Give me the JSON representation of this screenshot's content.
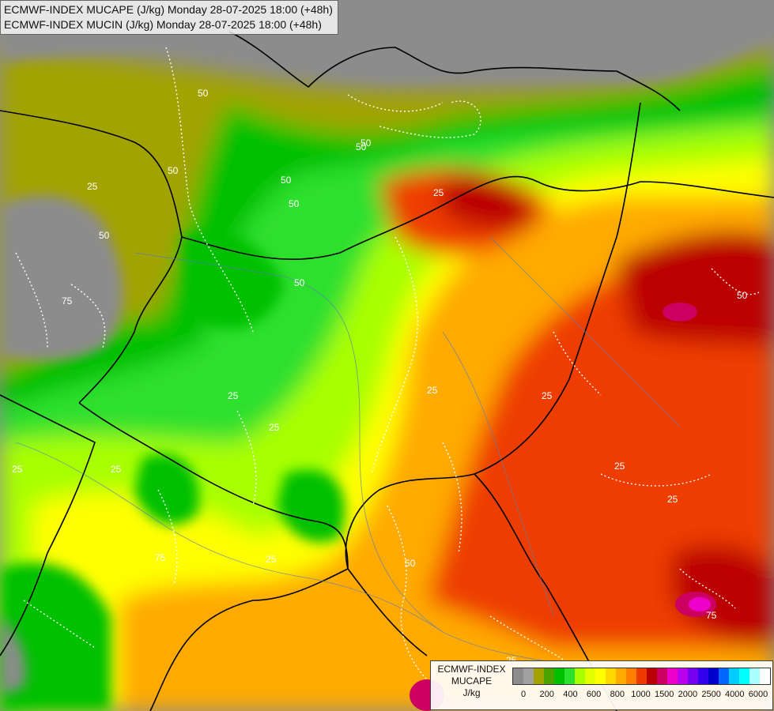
{
  "title": {
    "line1": "ECMWF-INDEX MUCAPE (J/kg) Monday 28-07-2025 18:00 (+48h)",
    "line2": "ECMWF-INDEX MUCIN (J/kg) Monday 28-07-2025 18:00 (+48h)"
  },
  "legend": {
    "label_line1": "ECMWF-INDEX",
    "label_line2": "MUCAPE",
    "label_line3": "J/kg",
    "colors": [
      "#8c8c8c",
      "#a0a0a0",
      "#a3a300",
      "#4ba300",
      "#00c000",
      "#2ee02e",
      "#a8ff00",
      "#e4ff00",
      "#ffff00",
      "#ffd700",
      "#ffaa00",
      "#ff7f00",
      "#ee3c00",
      "#bb0000",
      "#cc0060",
      "#ee00cc",
      "#bb00ee",
      "#7700ee",
      "#3300ee",
      "#0000cc",
      "#0066ff",
      "#00ccff",
      "#00ffff",
      "#aaffff",
      "#ffffff"
    ],
    "ticks": [
      "0",
      "200",
      "400",
      "600",
      "800",
      "1000",
      "1500",
      "2000",
      "2500",
      "4000",
      "6000"
    ]
  },
  "contour_labels": [
    "50",
    "50",
    "50",
    "50",
    "25",
    "50",
    "50",
    "50",
    "25",
    "25",
    "75",
    "50",
    "25",
    "25",
    "25",
    "25",
    "25",
    "50",
    "25",
    "75",
    "25",
    "25",
    "25",
    "50",
    "75"
  ]
}
